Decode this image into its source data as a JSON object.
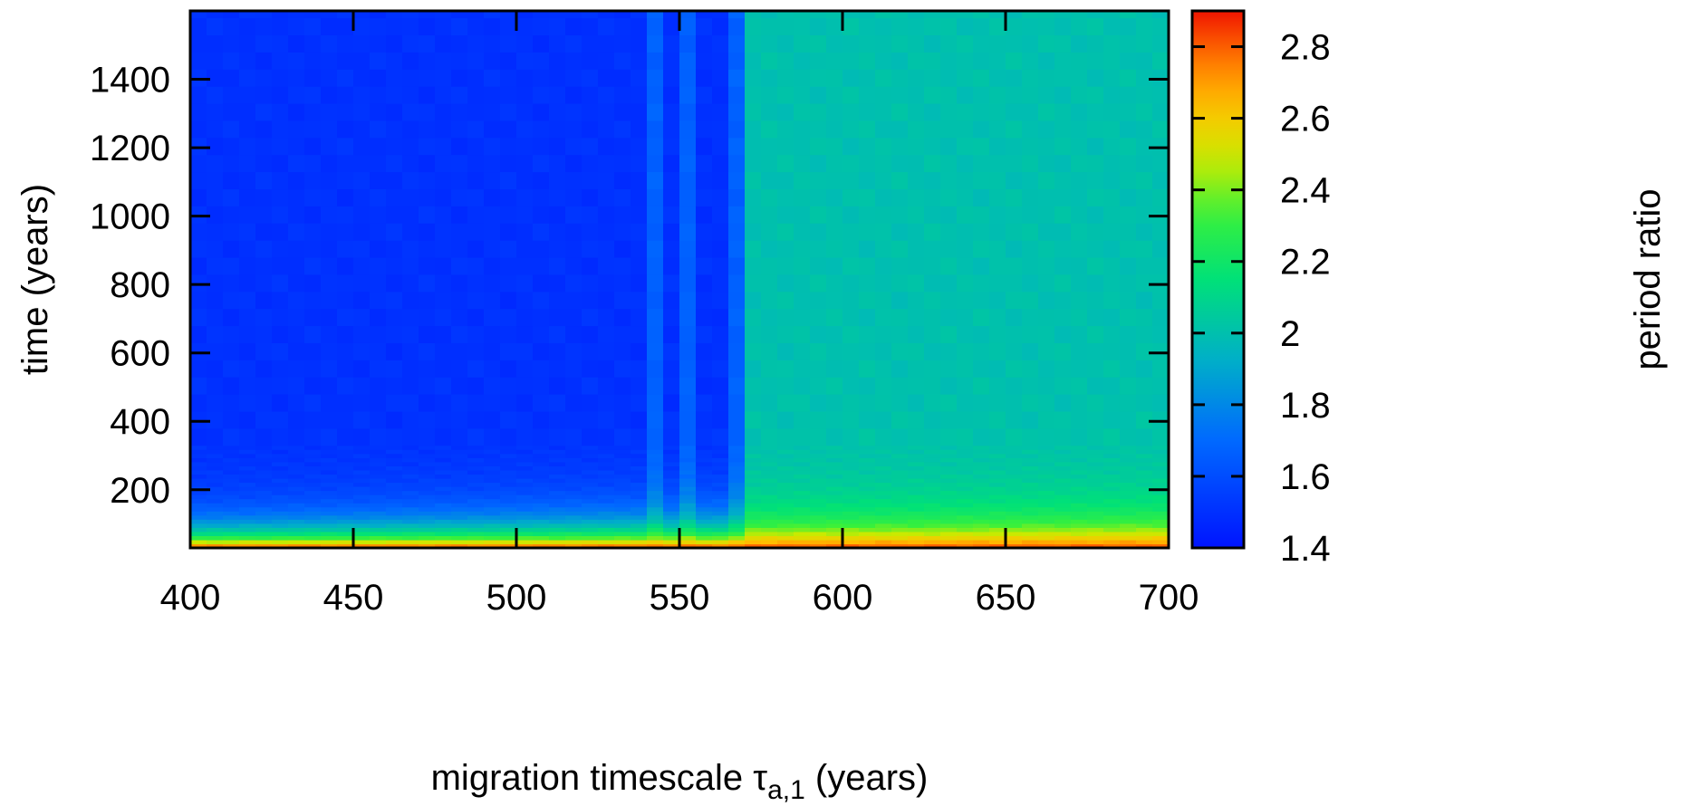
{
  "chart_data": {
    "type": "heatmap",
    "xlabel_prefix": "migration timescale τ",
    "xlabel_subscript": "a,1",
    "xlabel_suffix": " (years)",
    "ylabel": "time (years)",
    "colorbar_label": "period ratio",
    "xlim": [
      400,
      700
    ],
    "ylim": [
      30,
      1600
    ],
    "color_range": [
      1.4,
      2.9
    ],
    "x_ticks": [
      400,
      450,
      500,
      550,
      600,
      650,
      700
    ],
    "x_tick_labels": [
      "400",
      "450",
      "500",
      "550",
      "600",
      "650",
      "700"
    ],
    "y_ticks": [
      200,
      400,
      600,
      800,
      1000,
      1200,
      1400
    ],
    "y_tick_labels": [
      "200",
      "400",
      "600",
      "800",
      "1000",
      "1200",
      "1400"
    ],
    "colorbar_ticks": [
      1.4,
      1.6,
      1.8,
      2.0,
      2.2,
      2.4,
      2.6,
      2.8
    ],
    "colorbar_tick_labels": [
      "1.4",
      "1.6",
      "1.8",
      "2",
      "2.2",
      "2.4",
      "2.6",
      "2.8"
    ],
    "colormap": "rainbow (blue → cyan → green → yellow → orange → red)",
    "regions": [
      {
        "x_range": [
          400,
          570
        ],
        "period_ratio_plateau": 1.5,
        "note": "low-ratio region after transient"
      },
      {
        "x_range": [
          540,
          545
        ],
        "period_ratio_plateau": 1.67
      },
      {
        "x_range": [
          550,
          555
        ],
        "period_ratio_plateau": 1.67
      },
      {
        "x_range": [
          565,
          570
        ],
        "period_ratio_plateau": 1.67
      },
      {
        "x_range": [
          570,
          700
        ],
        "period_ratio_plateau": 2.0,
        "note": "high-ratio region after transient"
      }
    ],
    "initial_period_ratio": 2.85,
    "grid": false
  }
}
